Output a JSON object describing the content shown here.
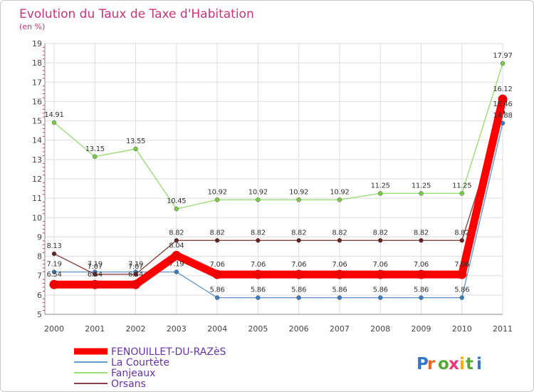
{
  "chart_data": {
    "type": "line",
    "title": "Evolution du Taux de Taxe d'Habitation",
    "subtitle": "(en %)",
    "x": [
      "2000",
      "2001",
      "2002",
      "2003",
      "2004",
      "2005",
      "2006",
      "2007",
      "2008",
      "2009",
      "2010",
      "2011"
    ],
    "ylim": [
      5,
      19
    ],
    "yticks": [
      5,
      6,
      7,
      8,
      9,
      10,
      11,
      12,
      13,
      14,
      15,
      16,
      17,
      18,
      19
    ],
    "ytick_labels": [
      "5",
      "6",
      "7",
      "8",
      "9",
      "10",
      "11",
      "12",
      "13",
      "14",
      "15",
      "16",
      "17",
      "18",
      "19"
    ],
    "grid": true,
    "legend_position": "bottom-left",
    "series": [
      {
        "name": "La Courtète",
        "color": "#6699cc",
        "marker": "#3a7dc0",
        "values": [
          7.19,
          7.19,
          7.19,
          7.19,
          5.86,
          5.86,
          5.86,
          5.86,
          5.86,
          5.86,
          5.86,
          14.88
        ],
        "labels": [
          "7.19",
          "7.19",
          "7.19",
          "7.19",
          "5.86",
          "5.86",
          "5.86",
          "5.86",
          "5.86",
          "5.86",
          "5.86",
          "14.88"
        ]
      },
      {
        "name": "Fanjeaux",
        "color": "#99dd77",
        "marker": "#77cc44",
        "values": [
          14.91,
          13.15,
          13.55,
          10.45,
          10.92,
          10.92,
          10.92,
          10.92,
          11.25,
          11.25,
          11.25,
          17.97
        ],
        "labels": [
          "14.91",
          "13.15",
          "13.55",
          "10.45",
          "10.92",
          "10.92",
          "10.92",
          "10.92",
          "11.25",
          "11.25",
          "11.25",
          "17.97"
        ]
      },
      {
        "name": "Orsans",
        "color": "#884444",
        "marker": "#662222",
        "values": [
          8.13,
          7.07,
          7.07,
          8.82,
          8.82,
          8.82,
          8.82,
          8.82,
          8.82,
          8.82,
          8.82,
          15.46
        ],
        "labels": [
          "8.13",
          "7.07",
          "7.07",
          "8.82",
          "8.82",
          "8.82",
          "8.82",
          "8.82",
          "8.82",
          "8.82",
          "8.82",
          "15.46"
        ]
      },
      {
        "name": "FENOUILLET-DU-RAZèS",
        "color": "#ff0000",
        "marker": "#ee0000",
        "values": [
          6.54,
          6.54,
          6.54,
          8.04,
          7.06,
          7.06,
          7.06,
          7.06,
          7.06,
          7.06,
          7.06,
          16.12
        ],
        "labels": [
          "6.54",
          "6.54",
          "6.54",
          "8.04",
          "7.06",
          "7.06",
          "7.06",
          "7.06",
          "7.06",
          "7.06",
          "7.06",
          "16.12"
        ]
      }
    ],
    "legend": [
      "FENOUILLET-DU-RAZèS",
      "La Courtète",
      "Fanjeaux",
      "Orsans"
    ],
    "logo_text": "Proxiti"
  }
}
